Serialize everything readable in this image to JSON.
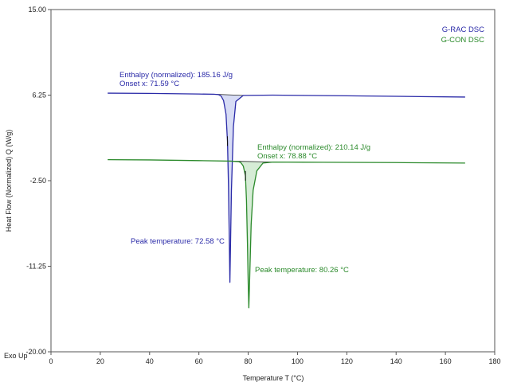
{
  "chart_data": {
    "type": "line",
    "title": "",
    "xlabel": "Temperature T (°C)",
    "ylabel": "Heat Flow (Normalized) Q (W/g)",
    "corner_label": "Exo Up",
    "xlim": [
      0,
      180
    ],
    "ylim": [
      -20,
      15
    ],
    "x_ticks": [
      0,
      20,
      40,
      60,
      80,
      100,
      120,
      140,
      160,
      180
    ],
    "y_ticks": [
      15.0,
      6.25,
      -2.5,
      -11.25,
      -20.0
    ],
    "y_tick_labels": [
      "15.00",
      "6.25",
      "-2.50",
      "-11.25",
      "-20.00"
    ],
    "grid": false,
    "legend_position": "top-right",
    "series": [
      {
        "name": "G-RAC DSC",
        "color": "#2a2aa8",
        "x": [
          23,
          40,
          60,
          66,
          68,
          69,
          70,
          71,
          71.6,
          72,
          72.3,
          72.58,
          72.8,
          73.2,
          74,
          75,
          78,
          90,
          120,
          150,
          168
        ],
        "y": [
          6.45,
          6.42,
          6.36,
          6.34,
          6.3,
          6.15,
          5.7,
          4.3,
          1.5,
          -3.0,
          -8.0,
          -12.9,
          -9.5,
          -3.5,
          3.0,
          5.6,
          6.22,
          6.25,
          6.18,
          6.1,
          6.05
        ]
      },
      {
        "name": "G-CON DSC",
        "color": "#2b8a2b",
        "x": [
          23,
          40,
          60,
          73,
          76,
          77,
          78,
          78.88,
          79.3,
          79.7,
          80.0,
          80.26,
          80.6,
          81.2,
          82,
          83.5,
          86,
          90,
          110,
          140,
          168
        ],
        "y": [
          -0.35,
          -0.38,
          -0.45,
          -0.5,
          -0.55,
          -0.65,
          -1.0,
          -2.0,
          -4.5,
          -9.0,
          -13.0,
          -15.5,
          -12.5,
          -7.0,
          -3.5,
          -1.5,
          -0.7,
          -0.6,
          -0.62,
          -0.65,
          -0.7
        ]
      }
    ],
    "annotations": [
      {
        "series": "G-RAC DSC",
        "lines": [
          "Enthalpy (normalized): 185.16 J/g",
          "Onset x: 71.59 °C"
        ]
      },
      {
        "series": "G-RAC DSC",
        "lines": [
          "Peak temperature: 72.58 °C"
        ]
      },
      {
        "series": "G-CON DSC",
        "lines": [
          "Enthalpy (normalized): 210.14 J/g",
          "Onset x: 78.88 °C"
        ]
      },
      {
        "series": "G-CON DSC",
        "lines": [
          "Peak temperature: 80.26 °C"
        ]
      }
    ]
  }
}
